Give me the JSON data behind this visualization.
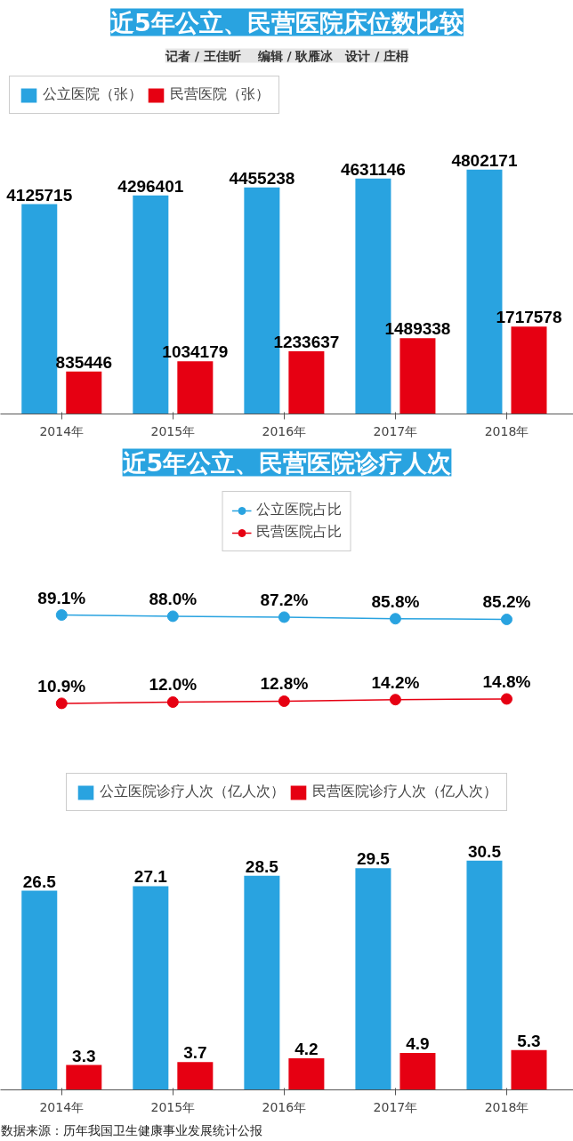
{
  "chart_data": [
    {
      "type": "bar",
      "title": "近5年公立、民营医院床位数比较",
      "subtitle": "记者 / 王佳昕　 编辑 / 耿雁冰　设计 / 庄枏",
      "categories": [
        "2014年",
        "2015年",
        "2016年",
        "2017年",
        "2018年"
      ],
      "series": [
        {
          "name": "公立医院（张）",
          "color": "#29a3e0",
          "values": [
            4125715,
            4296401,
            4455238,
            4631146,
            4802171
          ]
        },
        {
          "name": "民营医院（张）",
          "color": "#e60012",
          "values": [
            835446,
            1034179,
            1233637,
            1489338,
            1717578
          ]
        }
      ],
      "data_labels": true,
      "legend": "top left",
      "grid": false,
      "tick_labels": "x"
    },
    {
      "type": "line",
      "title": "近5年公立、民营医院诊疗人次",
      "categories": [
        null,
        null,
        null,
        null,
        null
      ],
      "series": [
        {
          "name": "公立医院占比",
          "color": "#29a3e0",
          "values": [
            89.1,
            88.0,
            87.2,
            85.8,
            85.2
          ],
          "value_labels": [
            "89.1%",
            "88.0%",
            "87.2%",
            "85.8%",
            "85.2%"
          ]
        },
        {
          "name": "民营医院占比",
          "color": "#e60012",
          "values": [
            10.9,
            12.0,
            12.8,
            14.2,
            14.8
          ],
          "value_labels": [
            "10.9%",
            "12.0%",
            "12.8%",
            "14.2%",
            "14.8%"
          ]
        }
      ],
      "data_labels": true,
      "legend": "top",
      "grid": false,
      "tick_labels": false,
      "marker": "circle",
      "line_style": "solid"
    },
    {
      "type": "bar",
      "categories": [
        "2014年",
        "2015年",
        "2016年",
        "2017年",
        "2018年"
      ],
      "series": [
        {
          "name": "公立医院诊疗人次（亿人次）",
          "color": "#29a3e0",
          "values": [
            26.5,
            27.1,
            28.5,
            29.5,
            30.5
          ]
        },
        {
          "name": "民营医院诊疗人次（亿人次）",
          "color": "#e60012",
          "values": [
            3.3,
            3.7,
            4.2,
            4.9,
            5.3
          ]
        }
      ],
      "data_labels": true,
      "legend": "top",
      "grid": false,
      "tick_labels": "x",
      "annotations": [
        "数据来源：历年我国卫生健康事业发展统计公报"
      ]
    }
  ]
}
